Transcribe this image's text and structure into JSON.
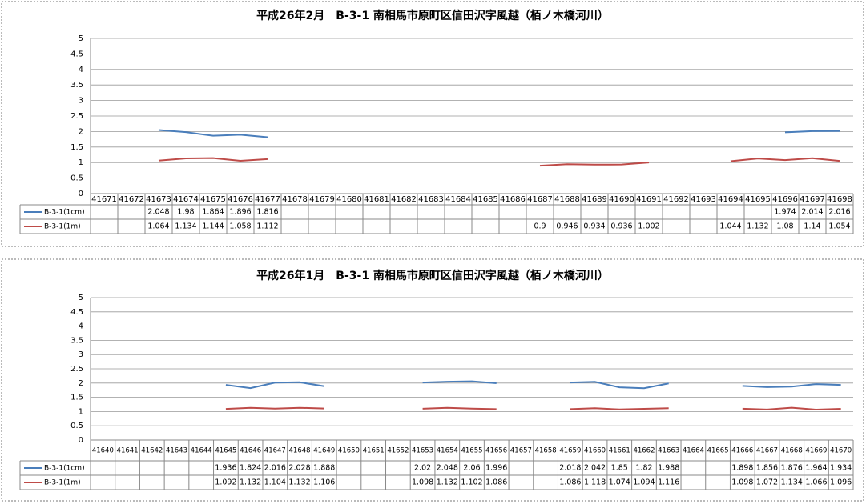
{
  "chart_data": [
    {
      "type": "line",
      "title": "平成26年2月　B-3-1 南相馬市原町区信田沢字風越（栢ノ木橋河川）",
      "categories": [
        41671,
        41672,
        41673,
        41674,
        41675,
        41676,
        41677,
        41678,
        41679,
        41680,
        41681,
        41682,
        41683,
        41684,
        41685,
        41686,
        41687,
        41688,
        41689,
        41690,
        41691,
        41692,
        41693,
        41694,
        41695,
        41696,
        41697,
        41698
      ],
      "series": [
        {
          "name": "B-3-1(1cm)",
          "color": "#4a7ebb",
          "values": [
            null,
            null,
            2.048,
            1.98,
            1.864,
            1.896,
            1.816,
            null,
            null,
            null,
            null,
            null,
            null,
            null,
            null,
            null,
            null,
            null,
            null,
            null,
            null,
            null,
            null,
            null,
            null,
            1.974,
            2.014,
            2.016
          ]
        },
        {
          "name": "B-3-1(1m)",
          "color": "#be4b48",
          "values": [
            null,
            null,
            1.064,
            1.134,
            1.144,
            1.058,
            1.112,
            null,
            null,
            null,
            null,
            null,
            null,
            null,
            null,
            null,
            0.9,
            0.946,
            0.934,
            0.936,
            1.002,
            null,
            null,
            1.044,
            1.132,
            1.08,
            1.14,
            1.054
          ]
        }
      ],
      "ylim": [
        0,
        5
      ],
      "yticks": [
        0,
        0.5,
        1,
        1.5,
        2,
        2.5,
        3,
        3.5,
        4,
        4.5,
        5
      ],
      "grid": true
    },
    {
      "type": "line",
      "title": "平成26年1月　B-3-1 南相馬市原町区信田沢字風越（栢ノ木橋河川）",
      "categories": [
        41640,
        41641,
        41642,
        41643,
        41644,
        41645,
        41646,
        41647,
        41648,
        41649,
        41650,
        41651,
        41652,
        41653,
        41654,
        41655,
        41656,
        41657,
        41658,
        41659,
        41660,
        41661,
        41662,
        41663,
        41664,
        41665,
        41666,
        41667,
        41668,
        41669,
        41670
      ],
      "series": [
        {
          "name": "B-3-1(1cm)",
          "color": "#4a7ebb",
          "values": [
            null,
            null,
            null,
            null,
            null,
            1.936,
            1.824,
            2.016,
            2.028,
            1.888,
            null,
            null,
            null,
            2.02,
            2.048,
            2.06,
            1.996,
            null,
            null,
            2.018,
            2.042,
            1.85,
            1.82,
            1.988,
            null,
            null,
            1.898,
            1.856,
            1.876,
            1.964,
            1.934
          ]
        },
        {
          "name": "B-3-1(1m)",
          "color": "#be4b48",
          "values": [
            null,
            null,
            null,
            null,
            null,
            1.092,
            1.132,
            1.104,
            1.132,
            1.106,
            null,
            null,
            null,
            1.098,
            1.132,
            1.102,
            1.086,
            null,
            null,
            1.086,
            1.118,
            1.074,
            1.094,
            1.116,
            null,
            null,
            1.098,
            1.072,
            1.134,
            1.066,
            1.096
          ]
        }
      ],
      "ylim": [
        0,
        5
      ],
      "yticks": [
        0,
        0.5,
        1,
        1.5,
        2,
        2.5,
        3,
        3.5,
        4,
        4.5,
        5
      ],
      "grid": true
    }
  ]
}
